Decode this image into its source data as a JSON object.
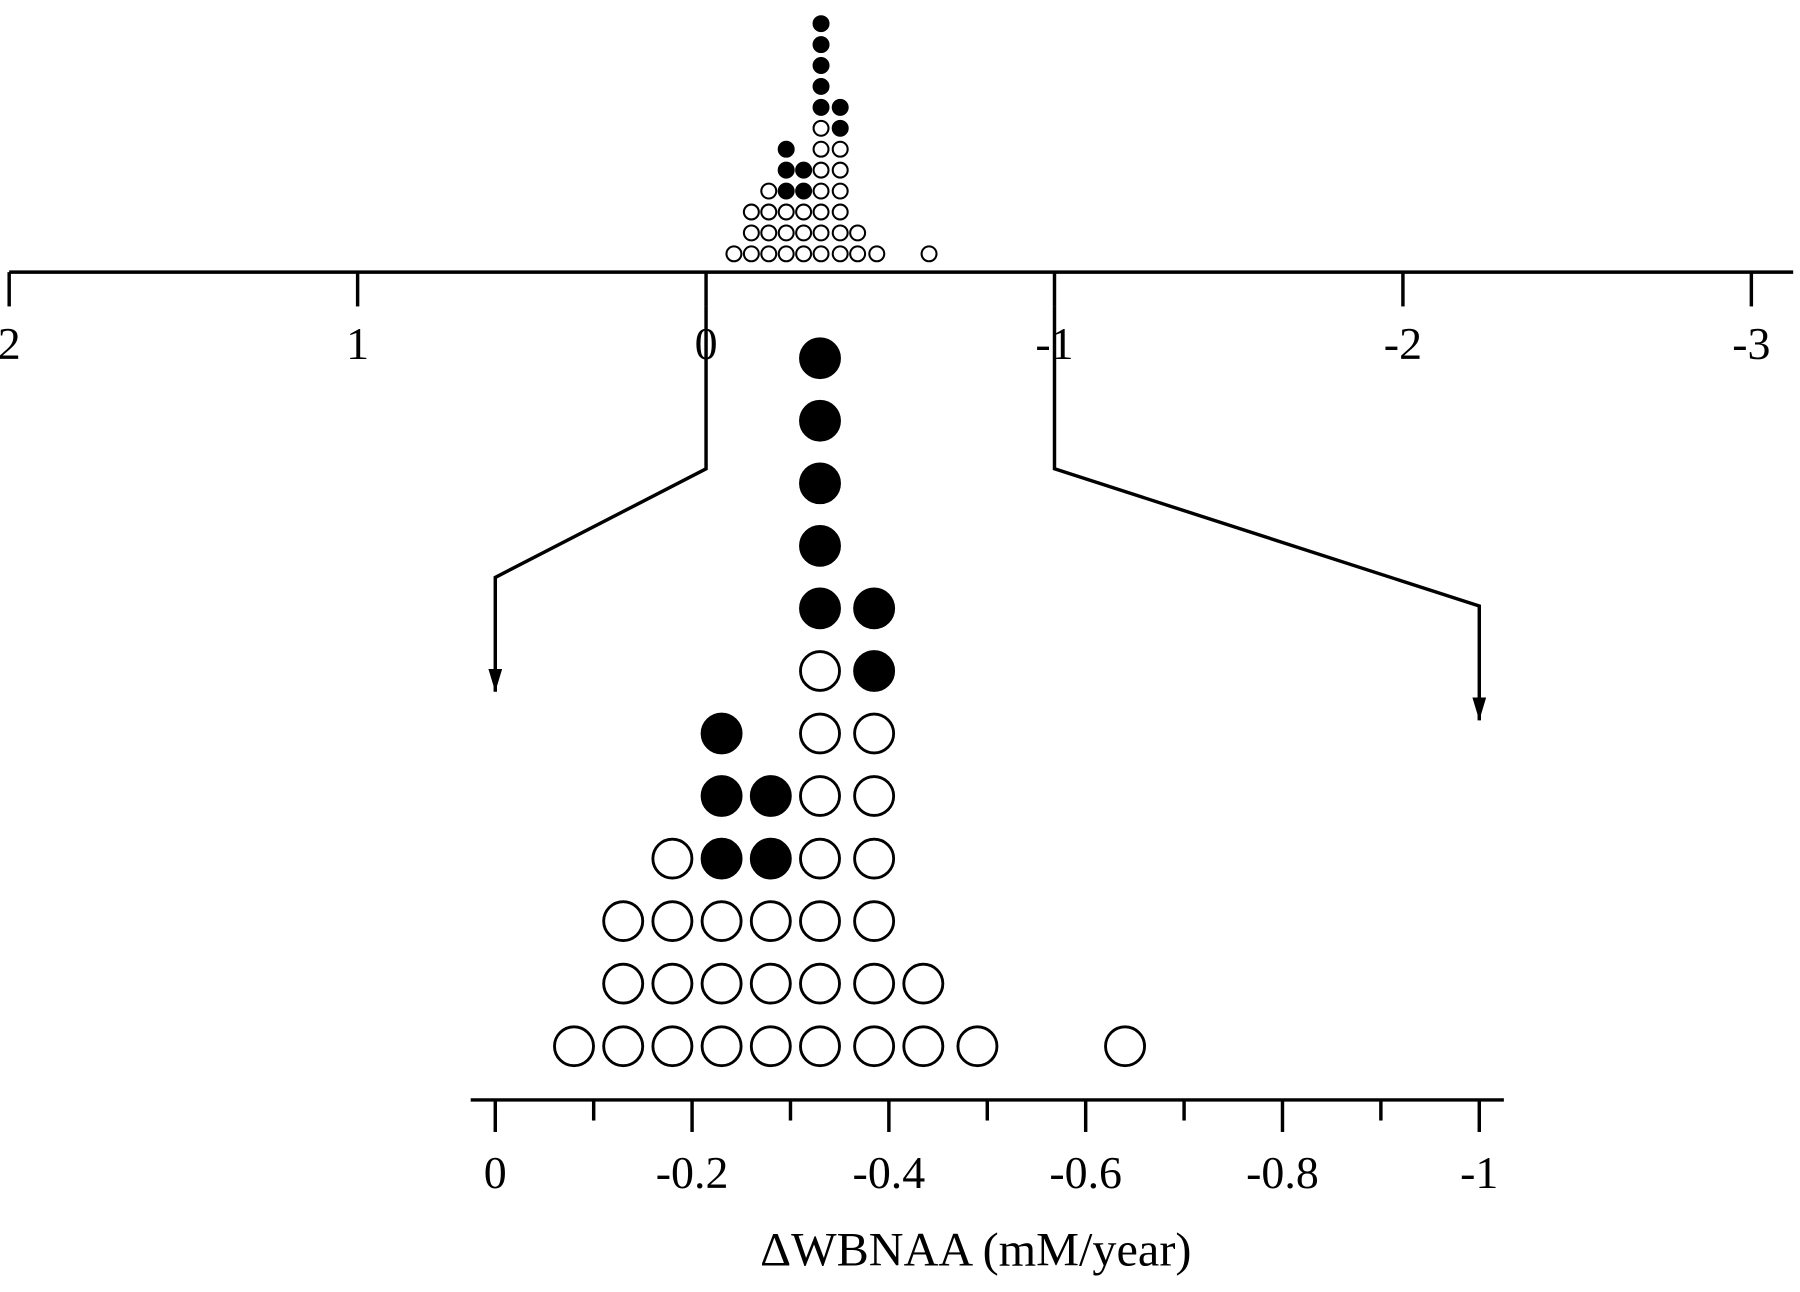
{
  "chart_data": {
    "type": "dot",
    "x_label": "ΔWBNAA (mM/year)",
    "series": [
      {
        "color": "#ffffff",
        "x": [
          -0.08,
          -0.13,
          -0.18,
          -0.23,
          -0.28,
          -0.33,
          -0.385,
          -0.435,
          -0.49,
          -0.64
        ],
        "counts": [
          1,
          3,
          4,
          3,
          3,
          7,
          6,
          2,
          1,
          1
        ]
      },
      {
        "color": "#000000",
        "x": [
          -0.23,
          -0.28,
          -0.33,
          -0.385
        ],
        "counts": [
          3,
          2,
          5,
          2
        ]
      }
    ],
    "overview": {
      "xlim": [
        2,
        -3.12
      ],
      "xticks": [
        2,
        1,
        0,
        -1,
        -2,
        -3
      ]
    },
    "xlim": [
      0.025,
      -1.025
    ],
    "xticks": [
      0,
      -0.2,
      -0.4,
      -0.6,
      -0.8,
      -1
    ],
    "xminorticks": [
      -0.1,
      -0.3,
      -0.5,
      -0.7,
      -0.9
    ]
  }
}
